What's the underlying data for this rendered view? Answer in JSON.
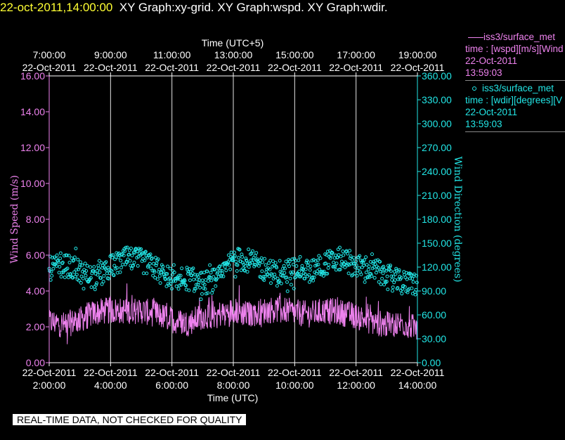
{
  "header": {
    "timestamp": "22-oct-2011,14:00:00",
    "graphs": "XY Graph:xy-grid.  XY Graph:wspd.  XY Graph:wdir."
  },
  "colors": {
    "wspd": "#ee82ee",
    "wdir": "#22e6e6",
    "grid": "#ffffff",
    "timestamp": "#ffff33"
  },
  "legend": {
    "wspd": {
      "source": "iss3/surface_met",
      "field": "time : [wspd][m/s][Wind",
      "date": "22-Oct-2011",
      "time": "13:59:03"
    },
    "wdir": {
      "source": "iss3/surface_met",
      "field": "time : [wdir][degrees][V",
      "date": "22-Oct-2011",
      "time": "13:59:03"
    }
  },
  "disclaimer": "REAL-TIME DATA, NOT CHECKED FOR QUALITY",
  "chart_data": {
    "type": "line",
    "title": "",
    "xlabel": "Time (UTC)",
    "x2label": "Time (UTC+5)",
    "ylabel": "Wind Speed (m/s)",
    "y2label": "Wind Direction (degrees)",
    "grid": "vertical",
    "legend_position": "right",
    "x_ticks_bottom": [
      {
        "hour": 2,
        "date": "22-Oct-2011",
        "time": "2:00:00"
      },
      {
        "hour": 4,
        "date": "22-Oct-2011",
        "time": "4:00:00"
      },
      {
        "hour": 6,
        "date": "22-Oct-2011",
        "time": "6:00:00"
      },
      {
        "hour": 8,
        "date": "22-Oct-2011",
        "time": "8:00:00"
      },
      {
        "hour": 10,
        "date": "22-Oct-2011",
        "time": "10:00:00"
      },
      {
        "hour": 12,
        "date": "22-Oct-2011",
        "time": "12:00:00"
      },
      {
        "hour": 14,
        "date": "22-Oct-2011",
        "time": "14:00:00"
      }
    ],
    "x_ticks_top": [
      {
        "hour": 2,
        "time": "7:00:00",
        "date": "22-Oct-2011"
      },
      {
        "hour": 4,
        "time": "9:00:00",
        "date": "22-Oct-2011"
      },
      {
        "hour": 6,
        "time": "11:00:00",
        "date": "22-Oct-2011"
      },
      {
        "hour": 8,
        "time": "13:00:00",
        "date": "22-Oct-2011"
      },
      {
        "hour": 10,
        "time": "15:00:00",
        "date": "22-Oct-2011"
      },
      {
        "hour": 12,
        "time": "17:00:00",
        "date": "22-Oct-2011"
      },
      {
        "hour": 14,
        "time": "19:00:00",
        "date": "22-Oct-2011"
      }
    ],
    "xlim": [
      2,
      14
    ],
    "y_ticks": [
      "0.00",
      "2.00",
      "4.00",
      "6.00",
      "8.00",
      "10.00",
      "12.00",
      "14.00",
      "16.00"
    ],
    "ylim": [
      0,
      16
    ],
    "y2_ticks": [
      "0.00",
      "30.00",
      "60.00",
      "90.00",
      "120.00",
      "150.00",
      "180.00",
      "210.00",
      "240.00",
      "270.00",
      "300.00",
      "330.00",
      "360.00"
    ],
    "y2lim": [
      0,
      360
    ],
    "series": [
      {
        "name": "iss3/surface_met",
        "field": "wspd",
        "style": "line",
        "x_hours": [
          2.0,
          2.5,
          3.0,
          3.5,
          4.0,
          4.5,
          5.0,
          5.5,
          6.0,
          6.5,
          7.0,
          7.5,
          8.0,
          8.5,
          9.0,
          9.5,
          10.0,
          10.5,
          11.0,
          11.5,
          12.0,
          12.5,
          13.0,
          13.5,
          14.0
        ],
        "values": [
          2.3,
          2.1,
          2.4,
          2.8,
          2.9,
          2.9,
          2.9,
          2.7,
          2.4,
          2.2,
          2.6,
          2.7,
          2.9,
          2.7,
          2.9,
          3.0,
          2.8,
          2.7,
          2.9,
          2.8,
          2.6,
          2.3,
          2.1,
          2.2,
          1.9
        ]
      },
      {
        "name": "iss3/surface_met",
        "field": "wdir",
        "style": "markers",
        "x_hours": [
          2.0,
          2.5,
          3.0,
          3.5,
          4.0,
          4.5,
          5.0,
          5.5,
          6.0,
          6.5,
          7.0,
          7.5,
          8.0,
          8.5,
          9.0,
          9.5,
          10.0,
          10.5,
          11.0,
          11.5,
          12.0,
          12.5,
          13.0,
          13.5,
          14.0
        ],
        "values": [
          118,
          122,
          115,
          105,
          120,
          130,
          128,
          118,
          102,
          106,
          100,
          104,
          130,
          128,
          118,
          110,
          120,
          115,
          125,
          130,
          122,
          118,
          108,
          100,
          100
        ]
      }
    ]
  }
}
